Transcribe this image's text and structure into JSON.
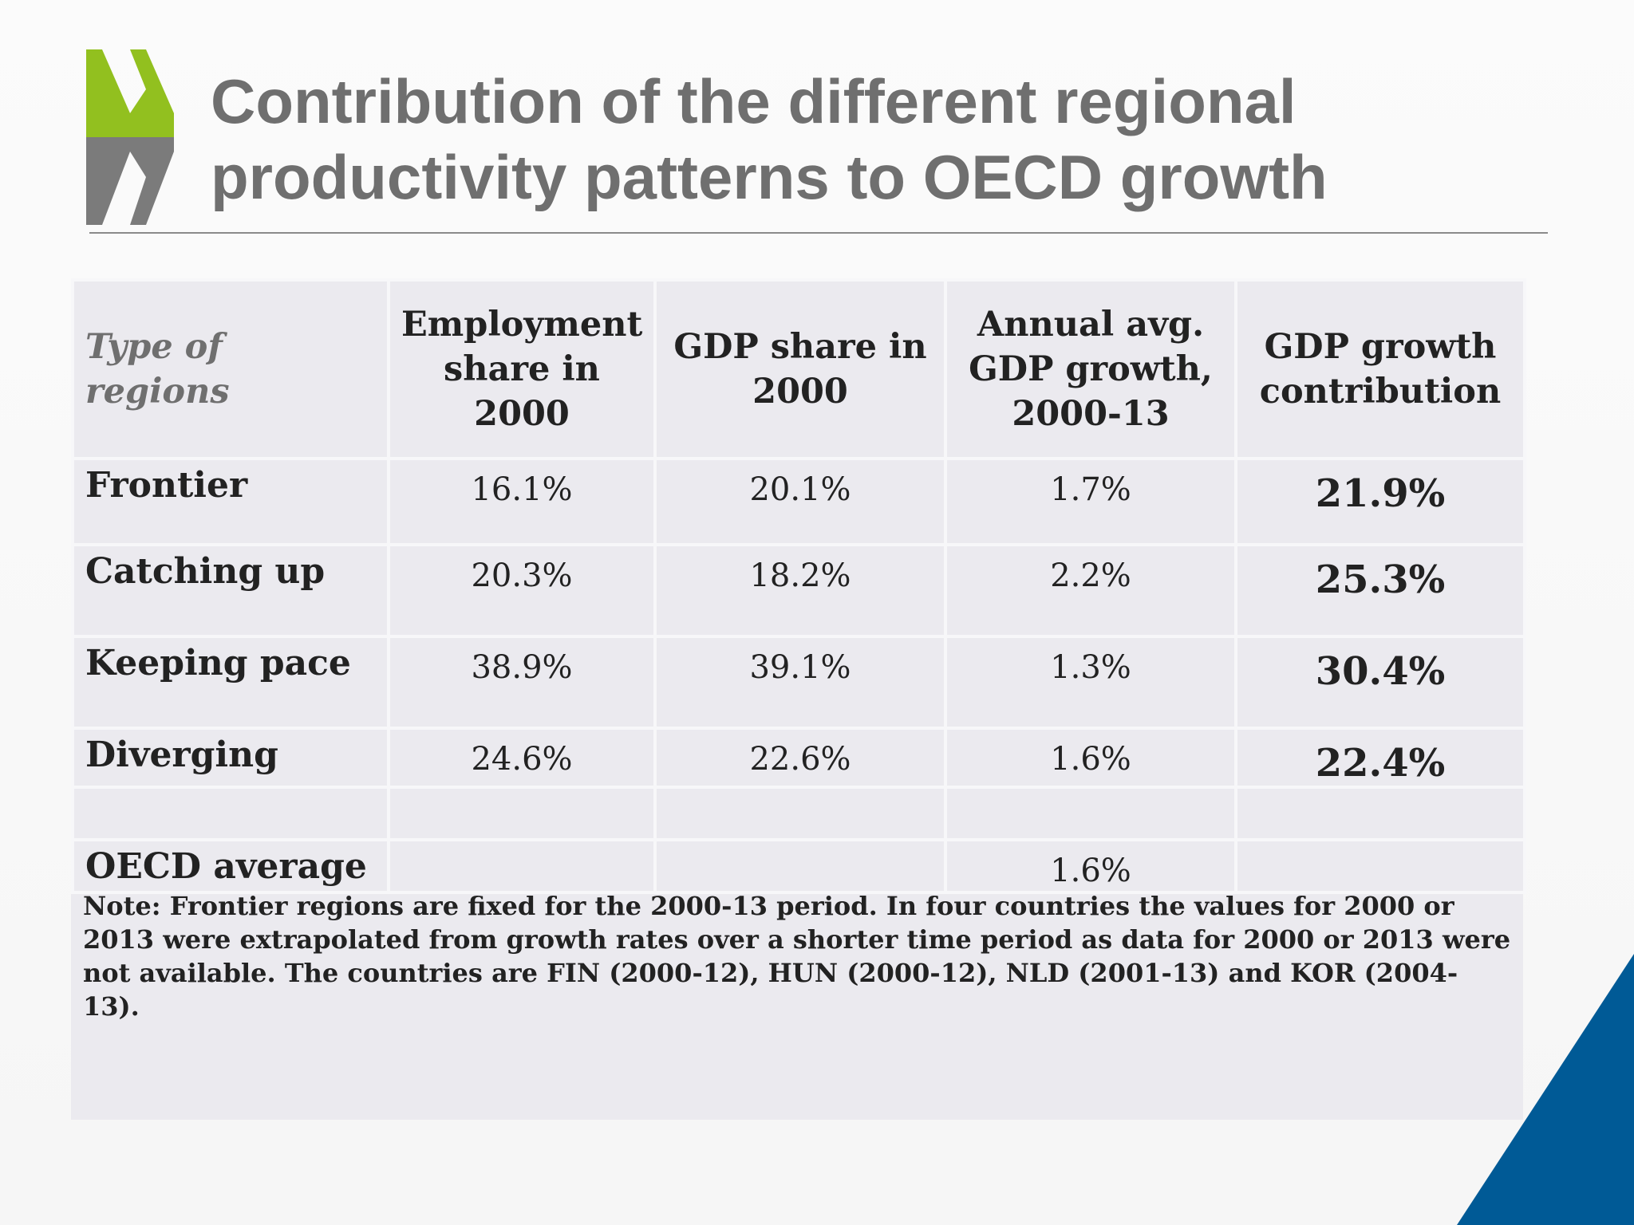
{
  "title": "Contribution of the different regional productivity patterns to OECD growth",
  "brand": {
    "green": "#92c01f",
    "grey": "#7b7b7b",
    "blue": "#005a96"
  },
  "table": {
    "headers": [
      "Type of regions",
      "Employment share in 2000",
      "GDP share in 2000",
      "Annual avg. GDP growth, 2000-13",
      "GDP growth contribution"
    ],
    "rows": [
      {
        "label": "Frontier",
        "employment": "16.1%",
        "gdp_share": "20.1%",
        "growth": "1.7%",
        "contribution": "21.9%"
      },
      {
        "label": "Catching up",
        "employment": "20.3%",
        "gdp_share": "18.2%",
        "growth": "2.2%",
        "contribution": "25.3%"
      },
      {
        "label": "Keeping pace",
        "employment": "38.9%",
        "gdp_share": "39.1%",
        "growth": "1.3%",
        "contribution": "30.4%"
      },
      {
        "label": "Diverging",
        "employment": "24.6%",
        "gdp_share": "22.6%",
        "growth": "1.6%",
        "contribution": "22.4%"
      }
    ],
    "average": {
      "label": "OECD average",
      "growth": "1.6%"
    }
  },
  "note": "Note: Frontier regions are fixed for the 2000-13 period. In four countries the values for 2000 or 2013 were extrapolated from growth rates over a shorter time period as data for 2000 or 2013 were not available. The countries are FIN (2000-12), HUN (2000-12), NLD (2001-13) and KOR (2004-13)."
}
